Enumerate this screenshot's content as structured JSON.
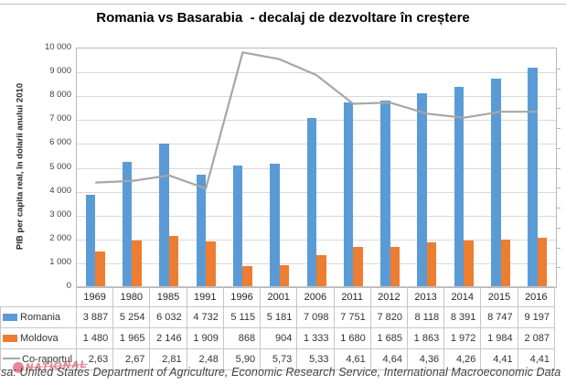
{
  "chart_data": {
    "type": "bar",
    "title": "Romania vs Basarabia  - decalaj de dezvoltare în creștere",
    "ylabel": "PIB per capita real, în dolarii anului 2010",
    "ylim": [
      0,
      10000
    ],
    "secondary_ylim": [
      0,
      6
    ],
    "grid": true,
    "legend_position": "table-left",
    "y_ticks": [
      "10 000",
      "9 000",
      "8 000",
      "7 000",
      "6 000",
      "5 000",
      "4 000",
      "3 000",
      "2 000",
      "1 000",
      "0"
    ],
    "categories": [
      "1969",
      "1980",
      "1985",
      "1991",
      "1996",
      "2001",
      "2006",
      "2011",
      "2012",
      "2013",
      "2014",
      "2015",
      "2016"
    ],
    "series": [
      {
        "name": "Romania",
        "type": "bar",
        "color": "#5b9bd5",
        "values": [
          3887,
          5254,
          6032,
          4732,
          5115,
          5181,
          7098,
          7751,
          7820,
          8118,
          8391,
          8747,
          9197
        ],
        "display": [
          "3 887",
          "5 254",
          "6 032",
          "4 732",
          "5 115",
          "5 181",
          "7 098",
          "7 751",
          "7 820",
          "8 118",
          "8 391",
          "8 747",
          "9 197"
        ]
      },
      {
        "name": "Moldova",
        "type": "bar",
        "color": "#ed7d31",
        "values": [
          1480,
          1965,
          2146,
          1909,
          868,
          904,
          1333,
          1680,
          1685,
          1863,
          1972,
          1984,
          2087
        ],
        "display": [
          "1 480",
          "1 965",
          "2 146",
          "1 909",
          "868",
          "904",
          "1 333",
          "1 680",
          "1 685",
          "1 863",
          "1 972",
          "1 984",
          "2 087"
        ]
      },
      {
        "name": "Co-raportul",
        "type": "line",
        "color": "#a6a6a6",
        "axis": "secondary",
        "values": [
          2.63,
          2.67,
          2.81,
          2.48,
          5.9,
          5.73,
          5.33,
          4.61,
          4.64,
          4.36,
          4.26,
          4.41,
          4.41
        ],
        "display": [
          "2,63",
          "2,67",
          "2,81",
          "2,48",
          "5,90",
          "5,73",
          "5,33",
          "4,61",
          "4,64",
          "4,36",
          "4,26",
          "4,41",
          "4,41"
        ]
      }
    ]
  },
  "footer": {
    "source_text": "sa: United States Department of Agriculture, Economic Research Service, International Macroeconomic Data"
  },
  "watermark": {
    "text": "NATIONAL"
  }
}
